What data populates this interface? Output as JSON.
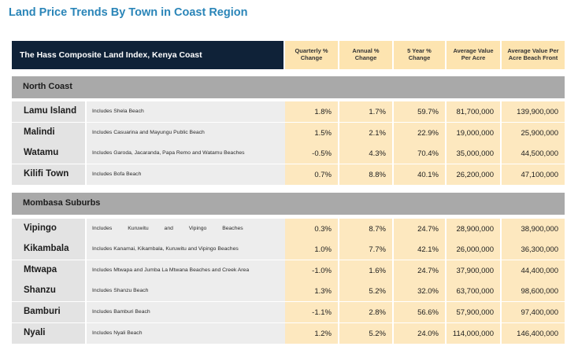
{
  "title": "Land Price Trends By Town in Coast Region",
  "table_header": {
    "index_label": "The Hass Composite Land Index, Kenya Coast",
    "columns": [
      "Quarterly % Change",
      "Annual % Change",
      "5 Year % Change",
      "Average Value Per Acre",
      "Average Value Per Acre Beach Front"
    ]
  },
  "sections": [
    {
      "name": "North Coast",
      "rows": [
        {
          "town": "Lamu Island",
          "desc": "Includes Shela Beach",
          "values": [
            "1.8%",
            "1.7%",
            "59.7%",
            "81,700,000",
            "139,900,000"
          ]
        },
        {
          "town": "Malindi",
          "desc": "Includes Casuarina  and Mayungu Public Beach",
          "values": [
            "1.5%",
            "2.1%",
            "22.9%",
            "19,000,000",
            "25,900,000"
          ]
        },
        {
          "town": "Watamu",
          "desc": "Includes Garoda, Jacaranda, Papa Remo and Watamu Beaches",
          "values": [
            "-0.5%",
            "4.3%",
            "70.4%",
            "35,000,000",
            "44,500,000"
          ]
        },
        {
          "town": "Kilifi Town",
          "desc": "Includes Bofa Beach",
          "values": [
            "0.7%",
            "8.8%",
            "40.1%",
            "26,200,000",
            "47,100,000"
          ]
        }
      ]
    },
    {
      "name": "Mombasa Suburbs",
      "rows": [
        {
          "town": "Vipingo",
          "desc": "Includes Kuruwitu and Vipingo Beaches",
          "values": [
            "0.3%",
            "8.7%",
            "24.7%",
            "28,900,000",
            "38,900,000"
          ]
        },
        {
          "town": "Kikambala",
          "desc": "Includes Kanamai, Kikambala, Kuruwitu and Vipingo Beaches",
          "values": [
            "1.0%",
            "7.7%",
            "42.1%",
            "26,000,000",
            "36,300,000"
          ]
        },
        {
          "town": "Mtwapa",
          "desc": "Includes Mtwapa and Jumba La Mtwana Beaches and Creek Area",
          "values": [
            "-1.0%",
            "1.6%",
            "24.7%",
            "37,900,000",
            "44,400,000"
          ]
        },
        {
          "town": "Shanzu",
          "desc": "Includes Shanzu Beach",
          "values": [
            "1.3%",
            "5.2%",
            "32.0%",
            "63,700,000",
            "98,600,000"
          ]
        },
        {
          "town": "Bamburi",
          "desc": "Includes Bamburi Beach",
          "values": [
            "-1.1%",
            "2.8%",
            "56.6%",
            "57,900,000",
            "97,400,000"
          ]
        },
        {
          "town": "Nyali",
          "desc": "Includes Nyali Beach",
          "values": [
            "1.2%",
            "5.2%",
            "24.0%",
            "114,000,000",
            "146,400,000"
          ]
        }
      ]
    }
  ]
}
